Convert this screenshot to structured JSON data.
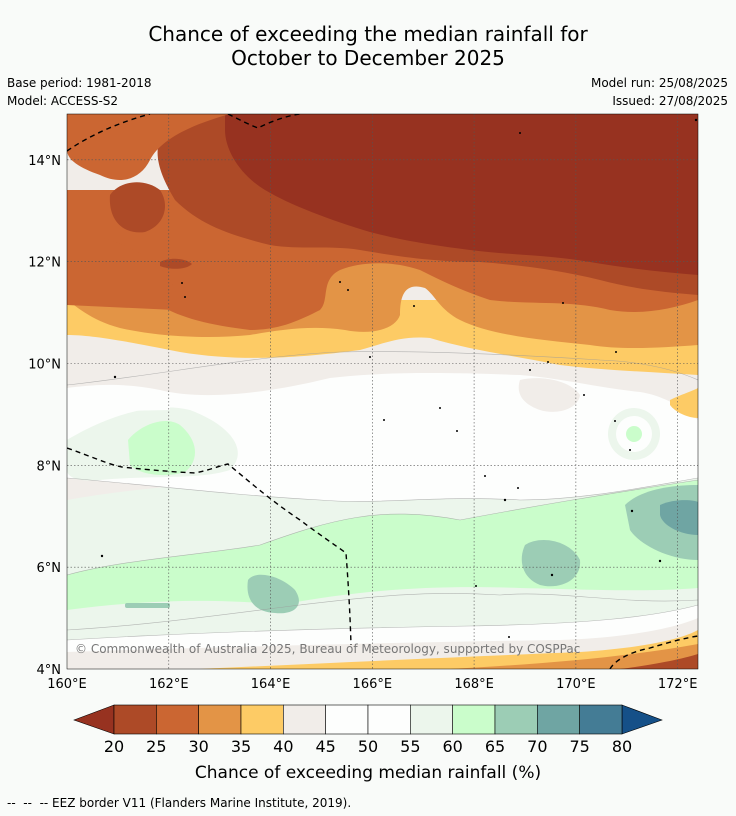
{
  "title_line1": "Chance of exceeding the median rainfall for",
  "title_line2": "October to December 2025",
  "base_period": "Base period: 1981-2018",
  "model": "Model: ACCESS-S2",
  "model_run": "Model run: 25/08/2025",
  "issued": "Issued: 27/08/2025",
  "copyright": "© Commonwealth of Australia 2025, Bureau of Meteorology, supported by COSPPac",
  "x_ticks": [
    "160°E",
    "162°E",
    "164°E",
    "166°E",
    "168°E",
    "170°E",
    "172°E"
  ],
  "y_ticks": [
    "14°N",
    "12°N",
    "10°N",
    "8°N",
    "6°N",
    "4°N"
  ],
  "colorbar": {
    "title": "Chance of exceeding median rainfall (%)",
    "ticks": [
      "20",
      "25",
      "30",
      "35",
      "40",
      "45",
      "50",
      "55",
      "60",
      "65",
      "70",
      "75",
      "80"
    ],
    "colors": [
      "#ad4a27",
      "#cb6632",
      "#e39446",
      "#fdcb65",
      "#f1ede9",
      "#fdfefd",
      "#fdfefd",
      "#ecf6ec",
      "#cafdcb",
      "#9ccdb5",
      "#6fa5a3",
      "#447c95"
    ],
    "low_color": "#973220",
    "high_color": "#155088"
  },
  "footnote": "--  --  -- EEZ border V11 (Flanders Marine Institute, 2019).",
  "map_colors": {
    "c20": "#973220",
    "c25": "#ad4a27",
    "c30": "#cb6632",
    "c35": "#e39446",
    "c40": "#fdcb65",
    "c45": "#f1ede9",
    "c50": "#fdfefd",
    "c60": "#ecf6ec",
    "c65": "#cafdcb",
    "c70": "#9ccdb5",
    "c75": "#6fa5a3",
    "c80": "#447c95"
  }
}
